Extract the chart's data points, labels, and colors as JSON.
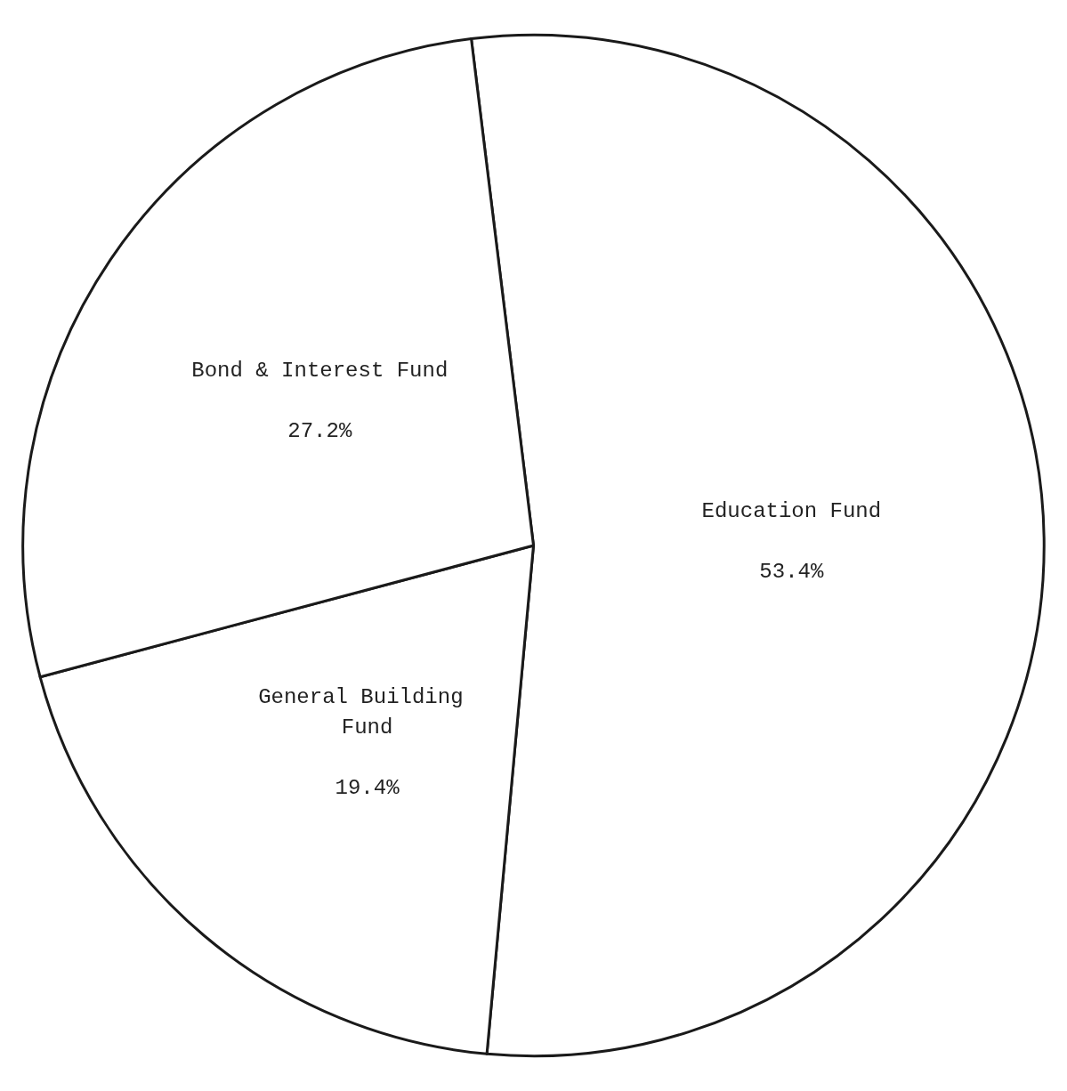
{
  "chart_data": {
    "type": "pie",
    "categories": [
      "Education Fund",
      "General Building Fund",
      "Bond & Interest Fund"
    ],
    "values": [
      53.4,
      19.4,
      27.2
    ],
    "colors": [
      "#ffffff",
      "#ffffff",
      "#ffffff"
    ],
    "value_labels": [
      "53.4%",
      "19.4%",
      "27.2%"
    ]
  }
}
